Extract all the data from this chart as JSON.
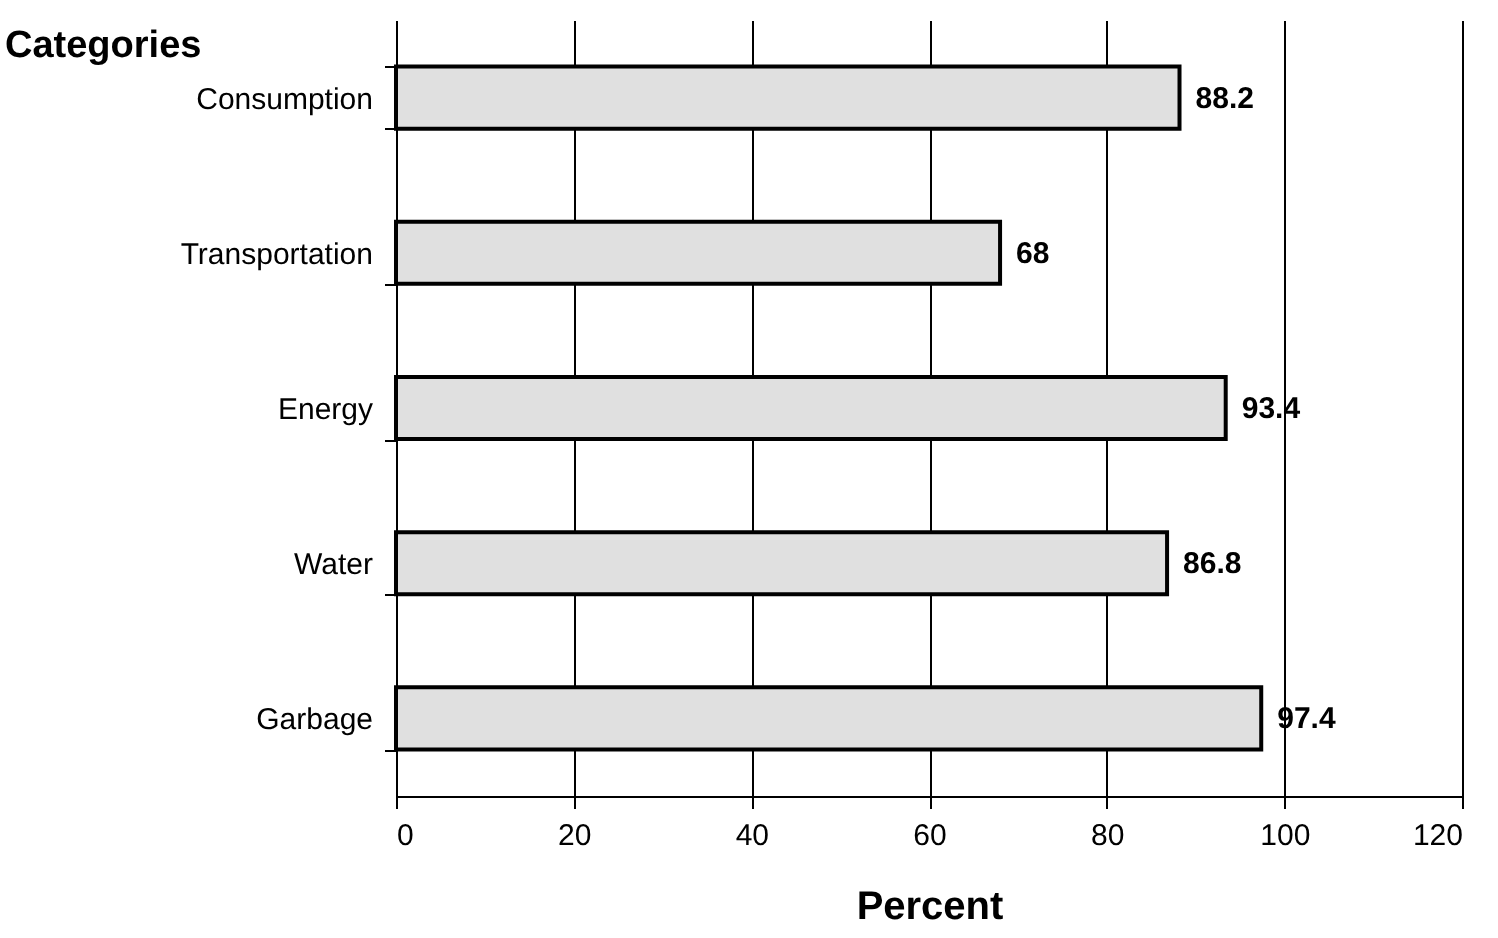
{
  "chart_data": {
    "type": "bar",
    "orientation": "horizontal",
    "ylabel": "Categories",
    "xlabel": "Percent",
    "categories": [
      "Consumption",
      "Transportation",
      "Energy",
      "Water",
      "Garbage"
    ],
    "values": [
      88.2,
      68,
      93.4,
      86.8,
      97.4
    ],
    "color": "#e0e0e0",
    "xlim": [
      0,
      120
    ],
    "xticks": [
      0,
      20,
      40,
      60,
      80,
      100,
      120
    ],
    "grid": "x",
    "data_labels": true
  }
}
